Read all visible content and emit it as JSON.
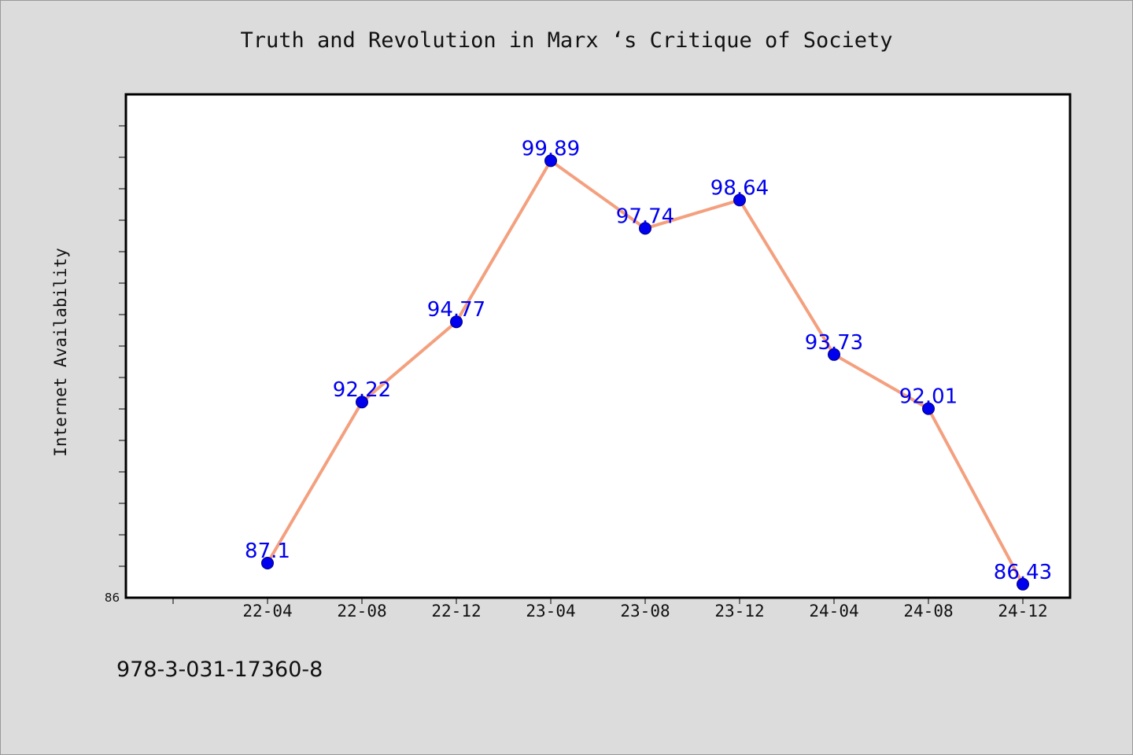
{
  "chart_data": {
    "type": "line",
    "title": "Truth and Revolution in Marx ‘s Critique of Society",
    "xlabel": "",
    "ylabel": "Internet Availability",
    "categories": [
      "22-04",
      "22-08",
      "22-12",
      "23-04",
      "23-08",
      "23-12",
      "24-04",
      "24-08",
      "24-12"
    ],
    "values": [
      87.1,
      92.22,
      94.77,
      99.89,
      97.74,
      98.64,
      93.73,
      92.01,
      86.43
    ],
    "data_labels": [
      "87.1",
      "92.22",
      "94.77",
      "99.89",
      "97.74",
      "98.64",
      "93.73",
      "92.01",
      "86.43"
    ],
    "ytick_labels": [
      "86"
    ],
    "ylim": [
      86,
      102
    ],
    "grid": false,
    "line_color": "#f4a07f",
    "marker_color": "#0000ee",
    "label_color": "#0000ee"
  },
  "footer": {
    "isbn": "978-3-031-17360-8"
  }
}
